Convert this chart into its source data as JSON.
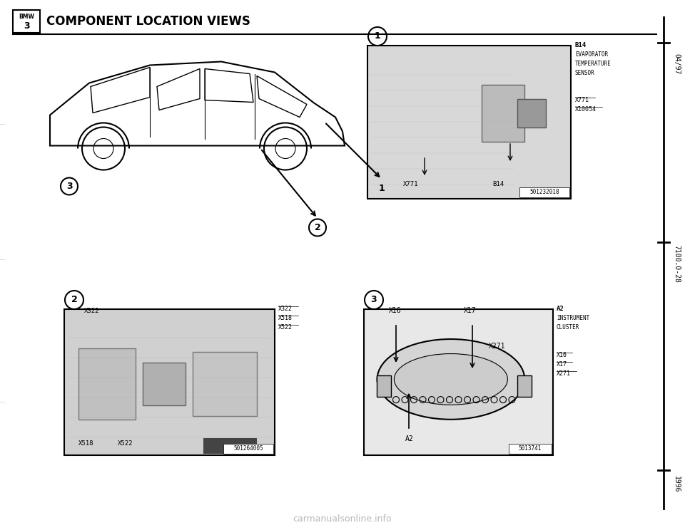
{
  "title": "COMPONENT LOCATION VIEWS",
  "bmw_series": "3",
  "page_ref_top": "04/97",
  "page_ref_mid": "7100.0-28",
  "page_ref_bot": "1996",
  "bg_color": "#ffffff",
  "detail1_serial": "501232018",
  "detail2_serial": "501264005",
  "detail3_serial": "5013741",
  "watermark": "carmanualsonline.info"
}
